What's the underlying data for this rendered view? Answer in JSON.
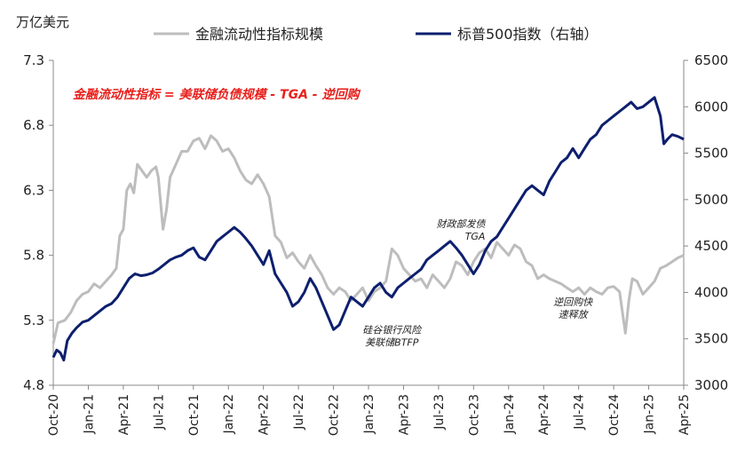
{
  "chart_data": {
    "type": "line",
    "left_unit": "万亿美元",
    "formula": "金融流动性指标 = 美联储负债规模 - TGA - 逆回购",
    "left_axis": {
      "min": 4.8,
      "max": 7.3,
      "ticks": [
        "7.3",
        "6.8",
        "6.3",
        "5.8",
        "5.3",
        "4.8"
      ]
    },
    "right_axis": {
      "min": 3000,
      "max": 6500,
      "ticks": [
        "6500",
        "6000",
        "5500",
        "5000",
        "4500",
        "4000",
        "3500",
        "3000"
      ]
    },
    "x_ticks": [
      "Oct-20",
      "Jan-21",
      "Apr-21",
      "Jul-21",
      "Oct-21",
      "Jan-22",
      "Apr-22",
      "Jul-22",
      "Oct-22",
      "Jan-23",
      "Apr-23",
      "Jul-23",
      "Oct-23",
      "Jan-24",
      "Apr-24",
      "Jul-24",
      "Oct-24",
      "Jan-25",
      "Apr-25"
    ],
    "x_range_months": [
      0,
      54
    ],
    "series": [
      {
        "name": "金融流动性指标规模",
        "axis": "left",
        "color": "#bdbdbd",
        "points": [
          [
            0.0,
            5.12
          ],
          [
            0.4,
            5.28
          ],
          [
            1.0,
            5.3
          ],
          [
            1.5,
            5.36
          ],
          [
            2.0,
            5.45
          ],
          [
            2.5,
            5.5
          ],
          [
            3.0,
            5.52
          ],
          [
            3.5,
            5.58
          ],
          [
            4.0,
            5.55
          ],
          [
            4.5,
            5.6
          ],
          [
            5.0,
            5.65
          ],
          [
            5.4,
            5.7
          ],
          [
            5.7,
            5.95
          ],
          [
            6.0,
            6.0
          ],
          [
            6.3,
            6.3
          ],
          [
            6.6,
            6.35
          ],
          [
            6.9,
            6.28
          ],
          [
            7.2,
            6.5
          ],
          [
            7.6,
            6.45
          ],
          [
            8.0,
            6.4
          ],
          [
            8.4,
            6.45
          ],
          [
            8.8,
            6.48
          ],
          [
            9.0,
            6.4
          ],
          [
            9.4,
            6.0
          ],
          [
            9.7,
            6.15
          ],
          [
            10.0,
            6.4
          ],
          [
            10.5,
            6.5
          ],
          [
            11.0,
            6.6
          ],
          [
            11.5,
            6.6
          ],
          [
            12.0,
            6.68
          ],
          [
            12.5,
            6.7
          ],
          [
            13.0,
            6.62
          ],
          [
            13.5,
            6.72
          ],
          [
            14.0,
            6.68
          ],
          [
            14.5,
            6.6
          ],
          [
            15.0,
            6.62
          ],
          [
            15.5,
            6.55
          ],
          [
            16.0,
            6.45
          ],
          [
            16.5,
            6.38
          ],
          [
            17.0,
            6.35
          ],
          [
            17.5,
            6.42
          ],
          [
            18.0,
            6.35
          ],
          [
            18.5,
            6.25
          ],
          [
            19.0,
            5.95
          ],
          [
            19.5,
            5.9
          ],
          [
            20.0,
            5.78
          ],
          [
            20.5,
            5.82
          ],
          [
            21.0,
            5.75
          ],
          [
            21.5,
            5.7
          ],
          [
            22.0,
            5.8
          ],
          [
            22.5,
            5.72
          ],
          [
            23.0,
            5.65
          ],
          [
            23.5,
            5.55
          ],
          [
            24.0,
            5.5
          ],
          [
            24.5,
            5.55
          ],
          [
            25.0,
            5.52
          ],
          [
            25.5,
            5.45
          ],
          [
            26.0,
            5.5
          ],
          [
            26.5,
            5.55
          ],
          [
            27.0,
            5.45
          ],
          [
            27.5,
            5.52
          ],
          [
            28.0,
            5.55
          ],
          [
            28.5,
            5.6
          ],
          [
            29.0,
            5.85
          ],
          [
            29.5,
            5.8
          ],
          [
            30.0,
            5.7
          ],
          [
            30.5,
            5.65
          ],
          [
            31.0,
            5.6
          ],
          [
            31.5,
            5.62
          ],
          [
            32.0,
            5.55
          ],
          [
            32.5,
            5.65
          ],
          [
            33.0,
            5.6
          ],
          [
            33.5,
            5.55
          ],
          [
            34.0,
            5.62
          ],
          [
            34.5,
            5.75
          ],
          [
            35.0,
            5.72
          ],
          [
            35.5,
            5.65
          ],
          [
            36.0,
            5.75
          ],
          [
            36.5,
            5.82
          ],
          [
            37.0,
            5.85
          ],
          [
            37.5,
            5.78
          ],
          [
            38.0,
            5.9
          ],
          [
            38.5,
            5.85
          ],
          [
            39.0,
            5.8
          ],
          [
            39.5,
            5.88
          ],
          [
            40.0,
            5.85
          ],
          [
            40.5,
            5.75
          ],
          [
            41.0,
            5.72
          ],
          [
            41.5,
            5.62
          ],
          [
            42.0,
            5.65
          ],
          [
            42.5,
            5.62
          ],
          [
            43.0,
            5.6
          ],
          [
            43.5,
            5.58
          ],
          [
            44.0,
            5.55
          ],
          [
            44.5,
            5.52
          ],
          [
            45.0,
            5.55
          ],
          [
            45.5,
            5.5
          ],
          [
            46.0,
            5.55
          ],
          [
            46.5,
            5.52
          ],
          [
            47.0,
            5.5
          ],
          [
            47.5,
            5.55
          ],
          [
            48.0,
            5.56
          ],
          [
            48.5,
            5.52
          ],
          [
            49.0,
            5.2
          ],
          [
            49.3,
            5.45
          ],
          [
            49.6,
            5.62
          ],
          [
            50.0,
            5.6
          ],
          [
            50.5,
            5.5
          ],
          [
            51.0,
            5.55
          ],
          [
            51.5,
            5.6
          ],
          [
            52.0,
            5.7
          ],
          [
            52.5,
            5.72
          ],
          [
            53.0,
            5.75
          ],
          [
            53.5,
            5.78
          ],
          [
            54.0,
            5.8
          ]
        ]
      },
      {
        "name": "标普500指数（右轴）",
        "axis": "right",
        "color": "#0d1f6e",
        "points": [
          [
            0.0,
            3300
          ],
          [
            0.3,
            3380
          ],
          [
            0.6,
            3350
          ],
          [
            0.9,
            3270
          ],
          [
            1.2,
            3480
          ],
          [
            1.6,
            3560
          ],
          [
            2.0,
            3620
          ],
          [
            2.5,
            3680
          ],
          [
            3.0,
            3700
          ],
          [
            3.5,
            3750
          ],
          [
            4.0,
            3800
          ],
          [
            4.5,
            3850
          ],
          [
            5.0,
            3880
          ],
          [
            5.5,
            3950
          ],
          [
            6.0,
            4050
          ],
          [
            6.5,
            4150
          ],
          [
            7.0,
            4200
          ],
          [
            7.5,
            4180
          ],
          [
            8.0,
            4190
          ],
          [
            8.5,
            4210
          ],
          [
            9.0,
            4250
          ],
          [
            9.5,
            4300
          ],
          [
            10.0,
            4350
          ],
          [
            10.5,
            4380
          ],
          [
            11.0,
            4400
          ],
          [
            11.5,
            4450
          ],
          [
            12.0,
            4480
          ],
          [
            12.5,
            4380
          ],
          [
            13.0,
            4350
          ],
          [
            13.5,
            4450
          ],
          [
            14.0,
            4550
          ],
          [
            14.5,
            4600
          ],
          [
            15.0,
            4650
          ],
          [
            15.5,
            4700
          ],
          [
            16.0,
            4650
          ],
          [
            16.5,
            4580
          ],
          [
            17.0,
            4500
          ],
          [
            17.5,
            4400
          ],
          [
            18.0,
            4300
          ],
          [
            18.5,
            4450
          ],
          [
            19.0,
            4200
          ],
          [
            19.5,
            4100
          ],
          [
            20.0,
            4000
          ],
          [
            20.5,
            3850
          ],
          [
            21.0,
            3900
          ],
          [
            21.5,
            4000
          ],
          [
            22.0,
            4150
          ],
          [
            22.5,
            4050
          ],
          [
            23.0,
            3900
          ],
          [
            23.5,
            3750
          ],
          [
            24.0,
            3600
          ],
          [
            24.5,
            3650
          ],
          [
            25.0,
            3800
          ],
          [
            25.5,
            3950
          ],
          [
            26.0,
            3900
          ],
          [
            26.5,
            3850
          ],
          [
            27.0,
            3950
          ],
          [
            27.5,
            4050
          ],
          [
            28.0,
            4100
          ],
          [
            28.5,
            4000
          ],
          [
            29.0,
            3950
          ],
          [
            29.5,
            4050
          ],
          [
            30.0,
            4100
          ],
          [
            30.5,
            4150
          ],
          [
            31.0,
            4200
          ],
          [
            31.5,
            4250
          ],
          [
            32.0,
            4350
          ],
          [
            32.5,
            4400
          ],
          [
            33.0,
            4450
          ],
          [
            33.5,
            4500
          ],
          [
            34.0,
            4550
          ],
          [
            34.5,
            4480
          ],
          [
            35.0,
            4400
          ],
          [
            35.5,
            4300
          ],
          [
            36.0,
            4200
          ],
          [
            36.5,
            4300
          ],
          [
            37.0,
            4450
          ],
          [
            37.5,
            4550
          ],
          [
            38.0,
            4600
          ],
          [
            38.5,
            4700
          ],
          [
            39.0,
            4800
          ],
          [
            39.5,
            4900
          ],
          [
            40.0,
            5000
          ],
          [
            40.5,
            5100
          ],
          [
            41.0,
            5150
          ],
          [
            41.5,
            5100
          ],
          [
            42.0,
            5050
          ],
          [
            42.5,
            5200
          ],
          [
            43.0,
            5300
          ],
          [
            43.5,
            5400
          ],
          [
            44.0,
            5450
          ],
          [
            44.5,
            5550
          ],
          [
            45.0,
            5450
          ],
          [
            45.5,
            5550
          ],
          [
            46.0,
            5650
          ],
          [
            46.5,
            5700
          ],
          [
            47.0,
            5800
          ],
          [
            47.5,
            5850
          ],
          [
            48.0,
            5900
          ],
          [
            48.5,
            5950
          ],
          [
            49.0,
            6000
          ],
          [
            49.5,
            6050
          ],
          [
            50.0,
            5980
          ],
          [
            50.5,
            6000
          ],
          [
            51.0,
            6050
          ],
          [
            51.5,
            6100
          ],
          [
            52.0,
            5900
          ],
          [
            52.3,
            5600
          ],
          [
            52.6,
            5650
          ],
          [
            53.0,
            5700
          ],
          [
            53.5,
            5680
          ],
          [
            54.0,
            5650
          ]
        ]
      }
    ],
    "annotations": [
      {
        "lines": [
          "财政部发债",
          "TGA"
        ],
        "x": 37.0,
        "y": 4700,
        "axis": "right",
        "align": "right"
      },
      {
        "lines": [
          "硅谷银行风险",
          "美联储BTFP"
        ],
        "x": 29.0,
        "y": 3560,
        "axis": "right",
        "align": "center"
      },
      {
        "lines": [
          "逆回购快",
          "速释放"
        ],
        "x": 44.5,
        "y": 3860,
        "axis": "right",
        "align": "center"
      }
    ]
  }
}
